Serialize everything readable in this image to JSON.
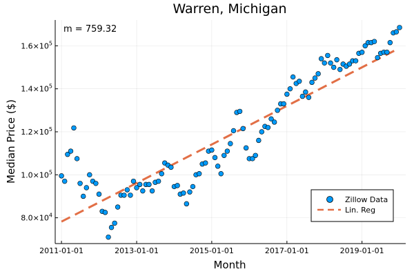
{
  "chart_data": {
    "type": "scatter",
    "title": "Warren, Michigan",
    "xlabel": "Month",
    "ylabel": "Median Price ($)",
    "annotation": "m = 759.32",
    "xlim": [
      "2010-11-01",
      "2020-03-01"
    ],
    "ylim": [
      68000,
      172000
    ],
    "x_ticks": [
      {
        "date": "2011-01-01",
        "label": "2011-01-01"
      },
      {
        "date": "2013-01-01",
        "label": "2013-01-01"
      },
      {
        "date": "2015-01-01",
        "label": "2015-01-01"
      },
      {
        "date": "2017-01-01",
        "label": "2017-01-01"
      },
      {
        "date": "2019-01-01",
        "label": "2019-01-01"
      }
    ],
    "y_ticks": [
      {
        "value": 80000,
        "mantissa": "8.0×10",
        "exp": "4"
      },
      {
        "value": 100000,
        "mantissa": "1.0×10",
        "exp": "5"
      },
      {
        "value": 120000,
        "mantissa": "1.2×10",
        "exp": "5"
      },
      {
        "value": 140000,
        "mantissa": "1.4×10",
        "exp": "5"
      },
      {
        "value": 160000,
        "mantissa": "1.6×10",
        "exp": "5"
      }
    ],
    "grid": true,
    "legend": "bottom-right",
    "colors": {
      "scatter": "#009af9",
      "line": "#e26f46"
    },
    "series": [
      {
        "name": "Zillow Data",
        "type": "scatter",
        "x": [
          "2011-01",
          "2011-02",
          "2011-03",
          "2011-04",
          "2011-05",
          "2011-06",
          "2011-07",
          "2011-08",
          "2011-09",
          "2011-10",
          "2011-11",
          "2011-12",
          "2012-01",
          "2012-02",
          "2012-03",
          "2012-04",
          "2012-05",
          "2012-06",
          "2012-07",
          "2012-08",
          "2012-09",
          "2012-10",
          "2012-11",
          "2012-12",
          "2013-01",
          "2013-02",
          "2013-03",
          "2013-04",
          "2013-05",
          "2013-06",
          "2013-07",
          "2013-08",
          "2013-09",
          "2013-10",
          "2013-11",
          "2013-12",
          "2014-01",
          "2014-02",
          "2014-03",
          "2014-04",
          "2014-05",
          "2014-06",
          "2014-07",
          "2014-08",
          "2014-09",
          "2014-10",
          "2014-11",
          "2014-12",
          "2015-01",
          "2015-02",
          "2015-03",
          "2015-04",
          "2015-05",
          "2015-06",
          "2015-07",
          "2015-08",
          "2015-09",
          "2015-10",
          "2015-11",
          "2015-12",
          "2016-01",
          "2016-02",
          "2016-03",
          "2016-04",
          "2016-05",
          "2016-06",
          "2016-07",
          "2016-08",
          "2016-09",
          "2016-10",
          "2016-11",
          "2016-12",
          "2017-01",
          "2017-02",
          "2017-03",
          "2017-04",
          "2017-05",
          "2017-06",
          "2017-07",
          "2017-08",
          "2017-09",
          "2017-10",
          "2017-11",
          "2017-12",
          "2018-01",
          "2018-02",
          "2018-03",
          "2018-04",
          "2018-05",
          "2018-06",
          "2018-07",
          "2018-08",
          "2018-09",
          "2018-10",
          "2018-11",
          "2018-12",
          "2019-01",
          "2019-02",
          "2019-03",
          "2019-04",
          "2019-05",
          "2019-06",
          "2019-07",
          "2019-08",
          "2019-09",
          "2019-10",
          "2019-11",
          "2019-12"
        ],
        "y": [
          99500,
          97000,
          109500,
          111000,
          121800,
          107500,
          96000,
          90000,
          94000,
          100000,
          97000,
          96000,
          91000,
          83000,
          82500,
          71000,
          75500,
          77500,
          85000,
          90500,
          90500,
          93000,
          90500,
          97000,
          94000,
          95500,
          92500,
          95500,
          95500,
          92500,
          96500,
          97000,
          100500,
          105500,
          104500,
          103500,
          94500,
          95000,
          91000,
          91500,
          86500,
          92000,
          94500,
          100000,
          100500,
          105000,
          105500,
          111000,
          111500,
          108000,
          104000,
          100500,
          109000,
          111000,
          114500,
          120500,
          129000,
          129500,
          121500,
          112500,
          107500,
          107500,
          109000,
          116000,
          120000,
          122500,
          122000,
          126000,
          124500,
          130000,
          133000,
          133000,
          137500,
          140000,
          145500,
          142500,
          143500,
          136500,
          138500,
          136000,
          143000,
          145000,
          147000,
          154000,
          152000,
          155500,
          152000,
          150000,
          153500,
          149000,
          151500,
          150500,
          151500,
          153000,
          153000,
          156500,
          157000,
          160000,
          161500,
          161500,
          162000,
          154500,
          156500,
          157000,
          157000,
          161500,
          166000,
          166500
        ],
        "extra_points": [
          {
            "x": "2020-01",
            "y": 168500
          }
        ]
      },
      {
        "name": "Lin. Reg",
        "type": "line",
        "style": "dashed",
        "x": [
          "2011-01",
          "2019-12"
        ],
        "y": [
          78200,
          158200
        ]
      }
    ]
  }
}
